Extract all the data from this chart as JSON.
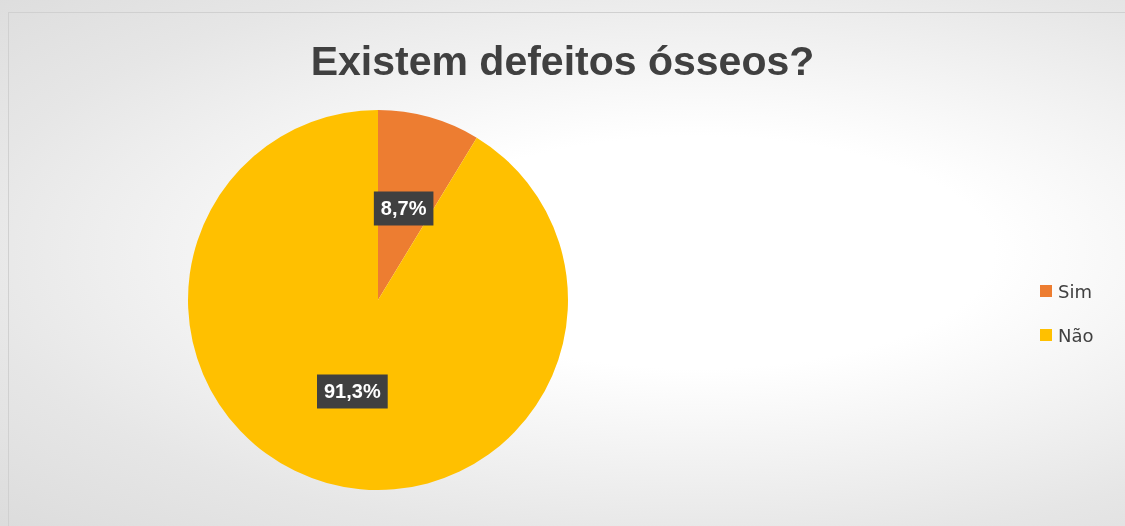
{
  "chart_data": {
    "type": "pie",
    "title": "Existem defeitos ósseos?",
    "categories": [
      "Sim",
      "Não"
    ],
    "values": [
      8.7,
      91.3
    ],
    "colors": [
      "#ed7d31",
      "#ffc000"
    ],
    "value_labels": [
      "8,7%",
      "91,3%"
    ],
    "legend": "right"
  }
}
